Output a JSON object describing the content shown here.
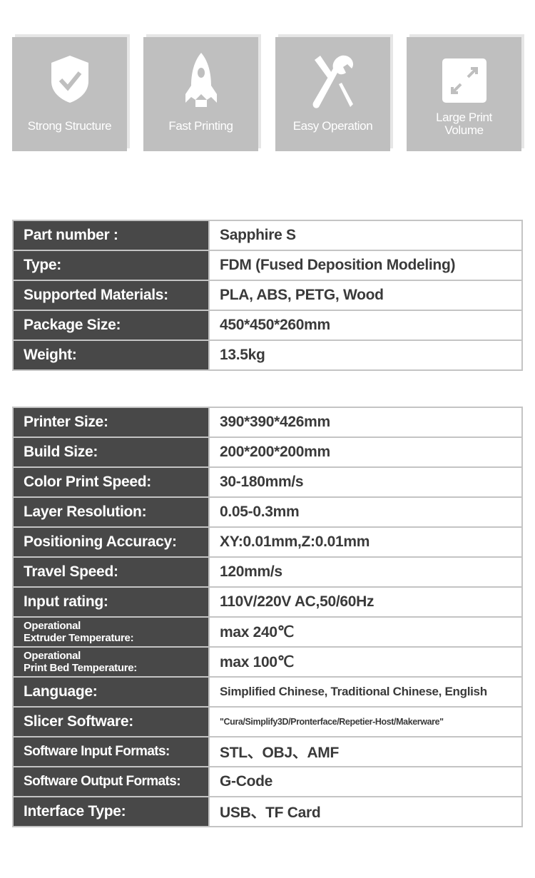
{
  "features": [
    {
      "label": "Strong Structure",
      "icon": "shield-check-icon"
    },
    {
      "label": "Fast Printing",
      "icon": "rocket-icon"
    },
    {
      "label": "Easy Operation",
      "icon": "tools-icon"
    },
    {
      "label_line1": "Large Print",
      "label_line2": "Volume",
      "icon": "expand-icon"
    }
  ],
  "table1": [
    {
      "key": "Part number :",
      "value": "Sapphire S"
    },
    {
      "key": "Type:",
      "value": "FDM (Fused Deposition Modeling)"
    },
    {
      "key": "Supported Materials:",
      "value": "PLA, ABS, PETG, Wood"
    },
    {
      "key": "Package Size:",
      "value": "450*450*260mm"
    },
    {
      "key": "Weight:",
      "value": "13.5kg"
    }
  ],
  "table2": [
    {
      "key": "Printer Size:",
      "value": "390*390*426mm"
    },
    {
      "key": "Build Size:",
      "value": "200*200*200mm"
    },
    {
      "key": "Color Print Speed:",
      "value": "30-180mm/s"
    },
    {
      "key": "Layer Resolution:",
      "value": "0.05-0.3mm"
    },
    {
      "key": "Positioning Accuracy:",
      "value": "XY:0.01mm,Z:0.01mm"
    },
    {
      "key": "Travel Speed:",
      "value": "120mm/s"
    },
    {
      "key": "Input rating:",
      "value": "110V/220V AC,50/60Hz"
    },
    {
      "key_line1": "Operational",
      "key_line2": "Extruder Temperature:",
      "value": "max 240℃"
    },
    {
      "key_line1": "Operational",
      "key_line2": "Print Bed Temperature:",
      "value": "max 100℃"
    },
    {
      "key": "Language:",
      "value": "Simplified Chinese, Traditional Chinese, English"
    },
    {
      "key": "Slicer Software:",
      "value": "\"Cura/Simplify3D/Pronterface/Repetier-Host/Makerware\""
    },
    {
      "key": "Software Input Formats:",
      "value": "STL、OBJ、AMF"
    },
    {
      "key": "Software Output Formats:",
      "value": "G-Code"
    },
    {
      "key": "Interface Type:",
      "value": "USB、TF Card"
    }
  ],
  "colors": {
    "label_bg": "#484848",
    "card_bg": "#bfbfbf",
    "border": "#c4c4c4"
  }
}
